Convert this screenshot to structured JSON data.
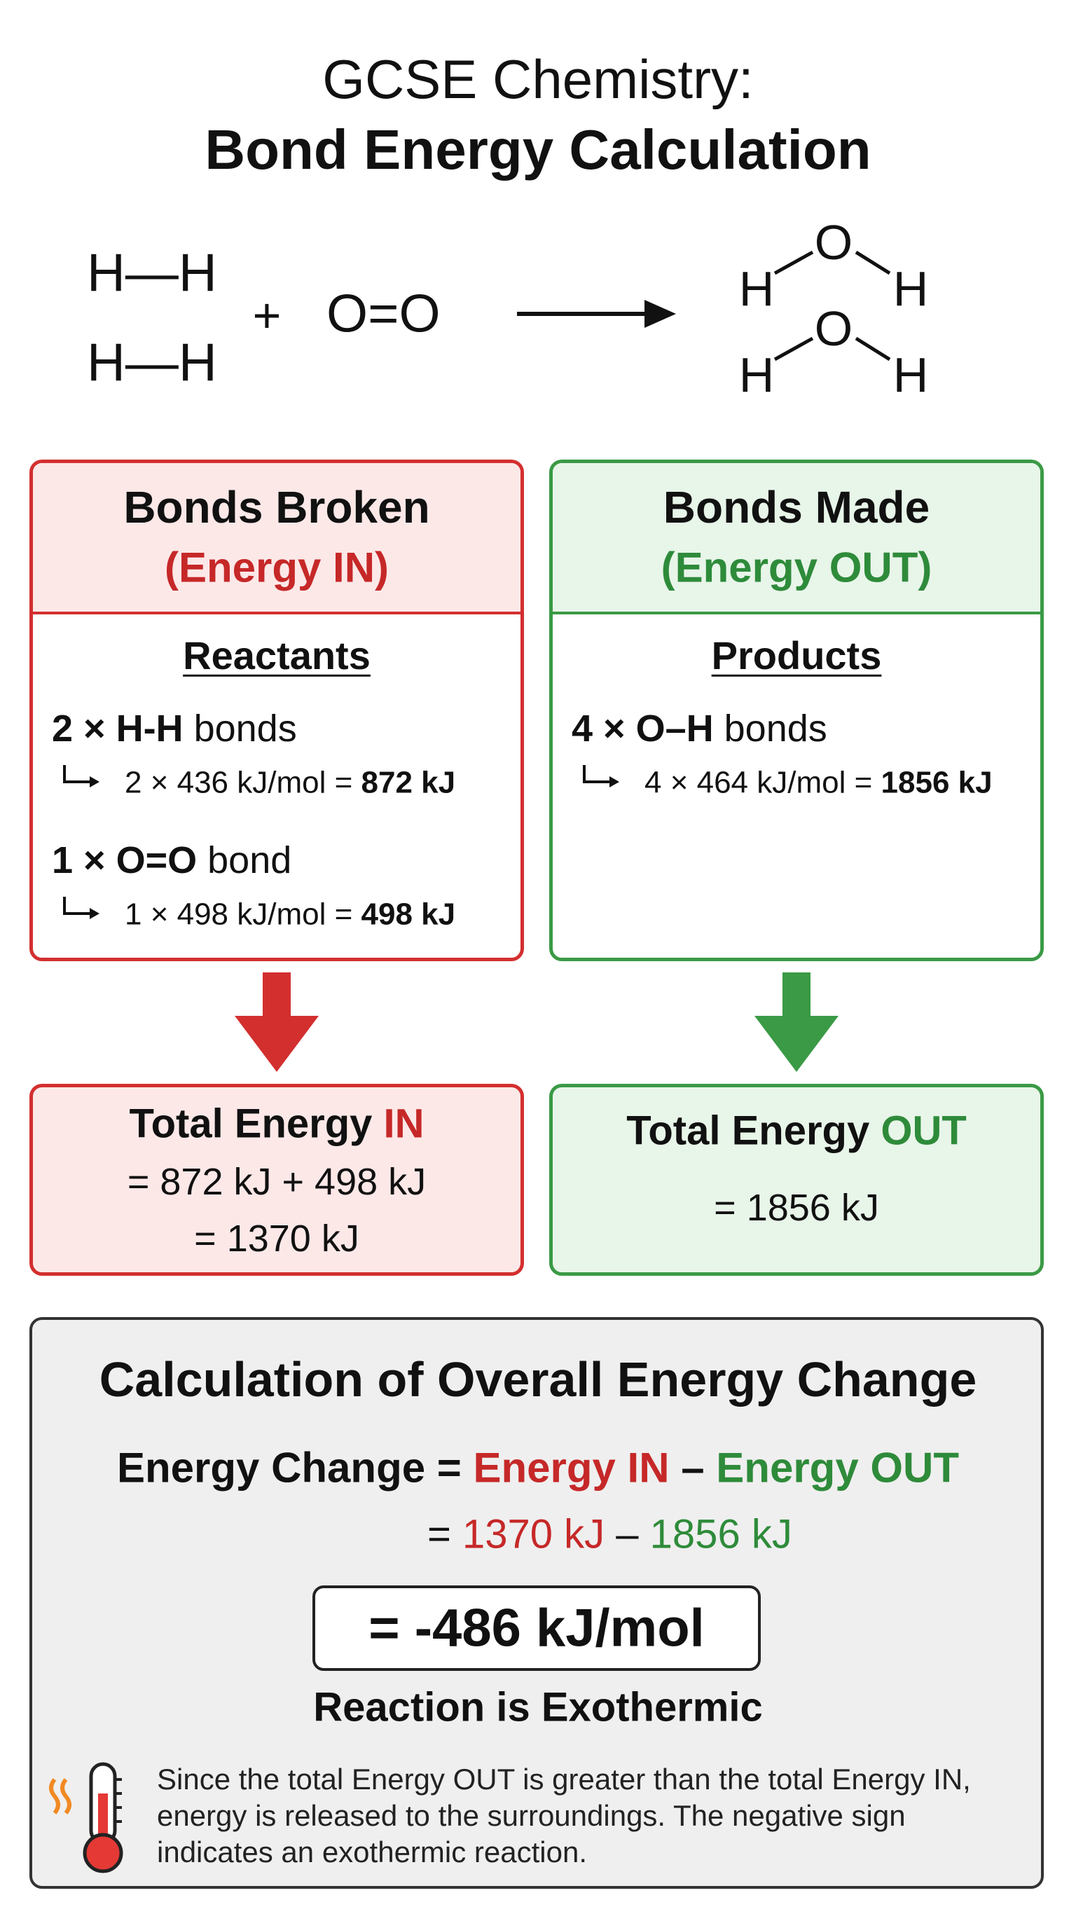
{
  "header": {
    "line1": "GCSE Chemistry:",
    "line2": "Bond Energy Calculation"
  },
  "equation": {
    "hydrogen": [
      "H—H",
      "H—H"
    ],
    "plus": "+",
    "oxygen": "O=O",
    "water": [
      {
        "left": "H",
        "center": "O",
        "right": "H"
      },
      {
        "left": "H",
        "center": "O",
        "right": "H"
      }
    ]
  },
  "broken": {
    "title": "Bonds Broken",
    "subtitle": "(Energy IN)",
    "heading": "Reactants",
    "items": [
      {
        "bold": "2 × H-H",
        "rest": "bonds",
        "calc": "2 × 436 kJ/mol =",
        "result": "872 kJ"
      },
      {
        "bold": "1 × O=O",
        "rest": "bond",
        "calc": "1 × 498 kJ/mol =",
        "result": "498 kJ"
      }
    ]
  },
  "made": {
    "title": "Bonds Made",
    "subtitle": "(Energy OUT)",
    "heading": "Products",
    "items": [
      {
        "bold": "4 × O–H",
        "rest": "bonds",
        "calc": "4 × 464 kJ/mol =",
        "result": "1856 kJ"
      }
    ]
  },
  "totals": {
    "in": {
      "label": "Total Energy",
      "highlight": "IN",
      "lines": [
        "= 872 kJ + 498 kJ",
        "= 1370 kJ"
      ]
    },
    "out": {
      "label": "Total Energy",
      "highlight": "OUT",
      "lines": [
        "= 1856 kJ"
      ]
    }
  },
  "calculation": {
    "title": "Calculation of Overall Energy Change",
    "formula": {
      "lhs": "Energy Change =",
      "in": "Energy IN",
      "minus": "–",
      "out": "Energy OUT"
    },
    "substitution": {
      "eq": "=",
      "in": "1370 kJ",
      "minus": "–",
      "out": "1856 kJ"
    },
    "result": "= -486 kJ/mol",
    "conclusion": "Reaction is Exothermic",
    "note": "Since the total Energy OUT is greater than the total Energy IN, energy is released to the surroundings. The negative sign indicates an exothermic reaction."
  }
}
